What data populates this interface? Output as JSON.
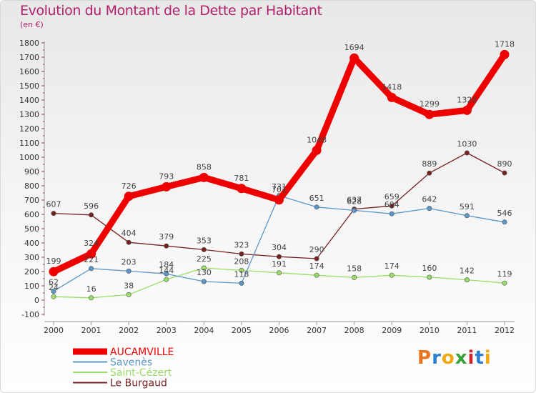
{
  "header": {
    "title": "Evolution du Montant de la Dette par Habitant",
    "subtitle": "(en €)"
  },
  "logo": {
    "text": "Proxiti",
    "colors": [
      "#e8731c",
      "#2a7fd0",
      "#f0a814",
      "#3aa23a",
      "#d2232a",
      "#2a7fd0",
      "#f0a814"
    ]
  },
  "chart_data": {
    "type": "line",
    "title": "Evolution du Montant de la Dette par Habitant",
    "subtitle": "(en €)",
    "x": [
      "2000",
      "2001",
      "2002",
      "2003",
      "2004",
      "2005",
      "2006",
      "2007",
      "2008",
      "2009",
      "2010",
      "2011",
      "2012"
    ],
    "ylim": [
      -100,
      1800
    ],
    "yticks": [
      -100,
      0,
      100,
      200,
      300,
      400,
      500,
      600,
      700,
      800,
      900,
      1000,
      1100,
      1200,
      1300,
      1400,
      1500,
      1600,
      1700,
      1800
    ],
    "grid": false,
    "legend_position": "bottom-left",
    "series": [
      {
        "name": "AUCAMVILLE",
        "color": "#ee0000",
        "values": [
          199,
          324,
          726,
          793,
          858,
          781,
          701,
          1048,
          1694,
          1418,
          1299,
          1328,
          1718
        ]
      },
      {
        "name": "Savenès",
        "color": "#5b97c8",
        "values": [
          62,
          221,
          203,
          184,
          130,
          118,
          731,
          651,
          628,
          604,
          642,
          591,
          546
        ]
      },
      {
        "name": "Saint-Cézert",
        "color": "#99dd66",
        "values": [
          24,
          16,
          38,
          144,
          225,
          208,
          191,
          174,
          158,
          174,
          160,
          142,
          119
        ]
      },
      {
        "name": "Le Burgaud",
        "color": "#772222",
        "values": [
          607,
          596,
          404,
          379,
          353,
          323,
          304,
          290,
          637,
          659,
          889,
          1030,
          890
        ]
      }
    ]
  }
}
